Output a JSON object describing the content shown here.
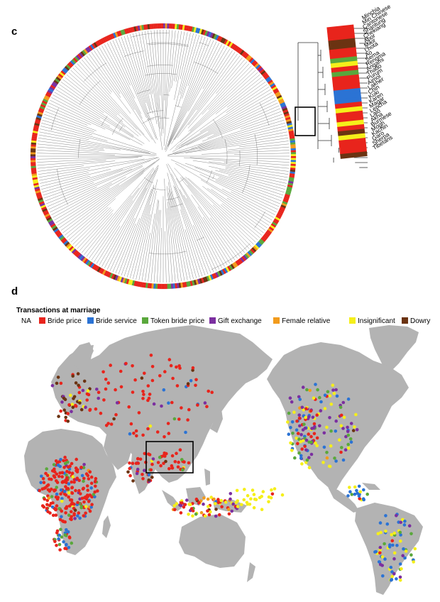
{
  "panel_c": {
    "letter": "c",
    "tip_labels": [
      "Minchia",
      "Min Chinese",
      "Cantonese",
      "Shantung",
      "Chekiang",
      "Abor",
      "Mikir",
      "Lhota",
      "Ao",
      "Sema",
      "Rengma",
      "Angami",
      "Thado",
      "Purum",
      "Aimol",
      "Lakher",
      "Chin",
      "Kuki",
      "Karen",
      "Magar",
      "Lepcha",
      "Lalo",
      "Akha",
      "Burmese",
      "Mogh",
      "Kachin",
      "Garo",
      "Sherpa",
      "Tibetans"
    ],
    "tip_categories": [
      "Bride price",
      "Bride price",
      "Bride price",
      "Dowry",
      "Dowry",
      "Bride price",
      "Bride price",
      "Token bride price",
      "Insignificant",
      "Bride price",
      "Token bride price",
      "Bride price",
      "Bride price",
      "Bride price",
      "Bride service",
      "Bride service",
      "Bride service",
      "Bride price",
      "Insignificant",
      "Bride price",
      "Bride price",
      "Insignificant",
      "Bride price",
      "Dowry",
      "Insignificant",
      "Bride price",
      "Bride price",
      "Bride price",
      "Dowry"
    ]
  },
  "panel_d": {
    "letter": "d",
    "legend": {
      "title": "Transactions at marriage",
      "na_label": "NA",
      "items": [
        {
          "label": "Bride price",
          "color": "#e8241c"
        },
        {
          "label": "Bride service",
          "color": "#2b73d4"
        },
        {
          "label": "Token bride price",
          "color": "#5aa83c"
        },
        {
          "label": "Gift exchange",
          "color": "#7b2fa0"
        },
        {
          "label": "Female relative",
          "color": "#f29b1c"
        },
        {
          "label": "Insignificant",
          "color": "#f5ef1a"
        },
        {
          "label": "Dowry",
          "color": "#6b3312"
        }
      ]
    },
    "map_icons": {
      "land": "world-landmass-shape",
      "highlight": "southeast-asia-box"
    }
  },
  "colors": {
    "Bride price": "#e8241c",
    "Bride service": "#2b73d4",
    "Token bride price": "#5aa83c",
    "Gift exchange": "#7b2fa0",
    "Female relative": "#f29b1c",
    "Insignificant": "#f5ef1a",
    "Dowry": "#6b3312",
    "land": "#b3b3b3"
  }
}
